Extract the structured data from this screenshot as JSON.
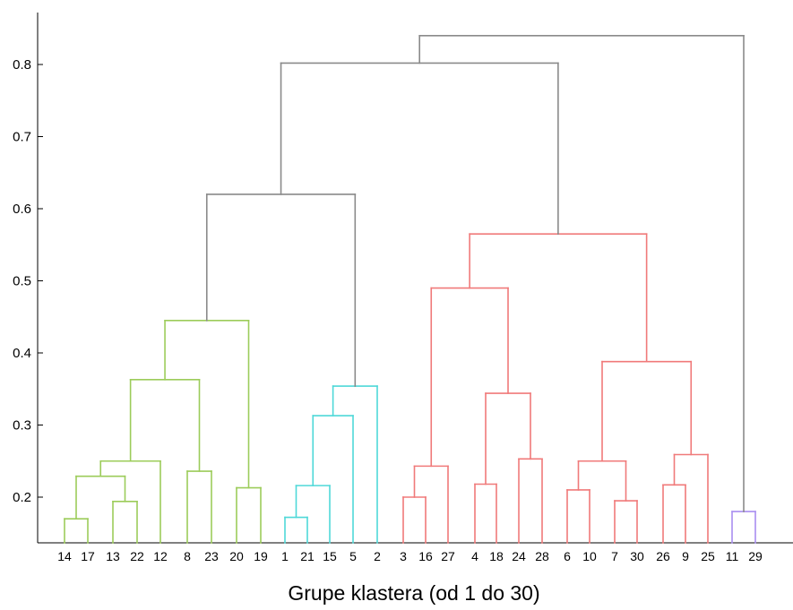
{
  "chart_data": {
    "type": "dendrogram",
    "title": "",
    "xlabel": "Grupe klastera (od 1 do 30)",
    "ylabel": "",
    "ylim": [
      0.14,
      0.87
    ],
    "yticks": [
      {
        "value": 0.2,
        "label": "0.2"
      },
      {
        "value": 0.3,
        "label": "0.3"
      },
      {
        "value": 0.4,
        "label": "0.4"
      },
      {
        "value": 0.5,
        "label": "0.5"
      },
      {
        "value": 0.6,
        "label": "0.6"
      },
      {
        "value": 0.7,
        "label": "0.7"
      },
      {
        "value": 0.8,
        "label": "0.8"
      }
    ],
    "grid": false,
    "leaves": [
      "14",
      "17",
      "13",
      "22",
      "12",
      "8",
      "23",
      "20",
      "19",
      "1",
      "21",
      "15",
      "5",
      "2",
      "3",
      "16",
      "27",
      "4",
      "18",
      "24",
      "28",
      "6",
      "10",
      "7",
      "30",
      "26",
      "9",
      "25",
      "11",
      "29"
    ],
    "cluster_colors": {
      "green": "#9ccc5a",
      "cyan": "#4fd8d8",
      "red": "#f07a7a",
      "purple": "#a98ef0",
      "gray": "#8a8a8a"
    },
    "merges": [
      {
        "id": "A",
        "left": "14",
        "right": "17",
        "height": 0.17,
        "color": "green"
      },
      {
        "id": "B",
        "left": "13",
        "right": "22",
        "height": 0.194,
        "color": "green"
      },
      {
        "id": "C",
        "left": "A",
        "right": "B",
        "height": 0.229,
        "color": "green"
      },
      {
        "id": "D",
        "left": "C",
        "right": "12",
        "height": 0.25,
        "color": "green"
      },
      {
        "id": "E",
        "left": "8",
        "right": "23",
        "height": 0.236,
        "color": "green"
      },
      {
        "id": "F",
        "left": "D",
        "right": "E",
        "height": 0.363,
        "color": "green"
      },
      {
        "id": "G",
        "left": "20",
        "right": "19",
        "height": 0.213,
        "color": "green"
      },
      {
        "id": "H",
        "left": "F",
        "right": "G",
        "height": 0.445,
        "color": "green"
      },
      {
        "id": "I",
        "left": "1",
        "right": "21",
        "height": 0.172,
        "color": "cyan"
      },
      {
        "id": "J",
        "left": "I",
        "right": "15",
        "height": 0.216,
        "color": "cyan"
      },
      {
        "id": "K",
        "left": "J",
        "right": "5",
        "height": 0.313,
        "color": "cyan"
      },
      {
        "id": "L",
        "left": "K",
        "right": "2",
        "height": 0.354,
        "color": "cyan"
      },
      {
        "id": "M",
        "left": "H",
        "right": "L",
        "height": 0.62,
        "color": "gray"
      },
      {
        "id": "N",
        "left": "3",
        "right": "16",
        "height": 0.2,
        "color": "red"
      },
      {
        "id": "O",
        "left": "N",
        "right": "27",
        "height": 0.243,
        "color": "red"
      },
      {
        "id": "P",
        "left": "4",
        "right": "18",
        "height": 0.218,
        "color": "red"
      },
      {
        "id": "Q",
        "left": "24",
        "right": "28",
        "height": 0.253,
        "color": "red"
      },
      {
        "id": "R",
        "left": "P",
        "right": "Q",
        "height": 0.344,
        "color": "red"
      },
      {
        "id": "S",
        "left": "O",
        "right": "R",
        "height": 0.49,
        "color": "red"
      },
      {
        "id": "T",
        "left": "6",
        "right": "10",
        "height": 0.21,
        "color": "red"
      },
      {
        "id": "U",
        "left": "7",
        "right": "30",
        "height": 0.195,
        "color": "red"
      },
      {
        "id": "V",
        "left": "T",
        "right": "U",
        "height": 0.25,
        "color": "red"
      },
      {
        "id": "W",
        "left": "26",
        "right": "9",
        "height": 0.217,
        "color": "red"
      },
      {
        "id": "X",
        "left": "W",
        "right": "25",
        "height": 0.259,
        "color": "red"
      },
      {
        "id": "Y",
        "left": "V",
        "right": "X",
        "height": 0.388,
        "color": "red"
      },
      {
        "id": "Z",
        "left": "S",
        "right": "Y",
        "height": 0.565,
        "color": "red"
      },
      {
        "id": "AA",
        "left": "M",
        "right": "Z",
        "height": 0.802,
        "color": "gray"
      },
      {
        "id": "AB",
        "left": "11",
        "right": "29",
        "height": 0.18,
        "color": "purple"
      },
      {
        "id": "AC",
        "left": "AA",
        "right": "AB",
        "height": 0.84,
        "color": "gray"
      }
    ]
  }
}
